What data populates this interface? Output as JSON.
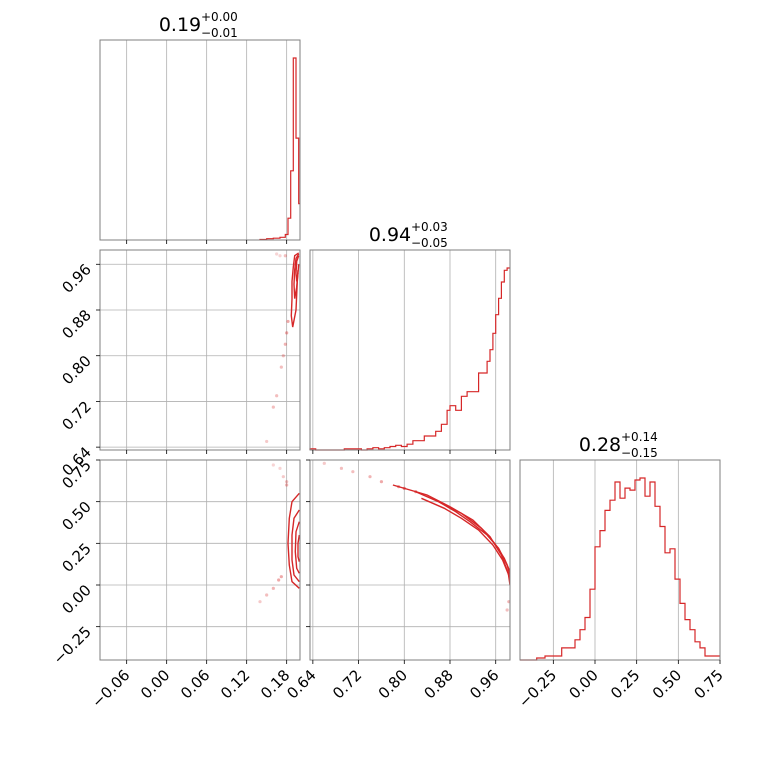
{
  "chart_data": {
    "type": "corner",
    "color": "#d62728",
    "params": [
      {
        "name": "",
        "range": [
          -0.1,
          0.2
        ],
        "ticks": [
          -0.06,
          0.0,
          0.06,
          0.12,
          0.18
        ],
        "tick_labels": [
          "−0.06",
          "0.00",
          "0.06",
          "0.12",
          "0.18"
        ],
        "title": {
          "median": "0.19",
          "plus": "+0.00",
          "minus": "−0.01"
        },
        "hist": {
          "edges": [
            0.14,
            0.15,
            0.16,
            0.17,
            0.178,
            0.182,
            0.186,
            0.19,
            0.194,
            0.198,
            0.2
          ],
          "counts": [
            0.003,
            0.007,
            0.01,
            0.015,
            0.03,
            0.12,
            0.38,
            1.0,
            0.56,
            0.2
          ]
        }
      },
      {
        "name": "",
        "range": [
          0.635,
          0.985
        ],
        "ticks": [
          0.64,
          0.72,
          0.8,
          0.88,
          0.96
        ],
        "tick_labels": [
          "0.64",
          "0.72",
          "0.80",
          "0.88",
          "0.96"
        ],
        "title": {
          "median": "0.94",
          "plus": "+0.03",
          "minus": "−0.05"
        },
        "hist": {
          "edges": [
            0.635,
            0.645,
            0.655,
            0.665,
            0.675,
            0.685,
            0.695,
            0.705,
            0.715,
            0.725,
            0.735,
            0.745,
            0.755,
            0.765,
            0.775,
            0.785,
            0.795,
            0.805,
            0.815,
            0.825,
            0.835,
            0.845,
            0.855,
            0.865,
            0.875,
            0.88,
            0.89,
            0.9,
            0.91,
            0.92,
            0.93,
            0.935,
            0.945,
            0.95,
            0.955,
            0.96,
            0.965,
            0.97,
            0.975,
            0.98,
            0.985
          ],
          "counts": [
            0.005,
            0.0,
            0.0,
            0.0,
            0.0,
            0.0,
            0.005,
            0.005,
            0.005,
            0.0,
            0.005,
            0.01,
            0.005,
            0.01,
            0.015,
            0.02,
            0.015,
            0.025,
            0.04,
            0.04,
            0.06,
            0.06,
            0.08,
            0.11,
            0.17,
            0.19,
            0.17,
            0.23,
            0.25,
            0.25,
            0.33,
            0.33,
            0.38,
            0.43,
            0.5,
            0.58,
            0.65,
            0.72,
            0.77,
            0.78
          ]
        }
      },
      {
        "name": "",
        "range": [
          -0.45,
          0.75
        ],
        "ticks": [
          -0.25,
          0.0,
          0.25,
          0.5,
          0.75
        ],
        "tick_labels": [
          "−0.25",
          "0.00",
          "0.25",
          "0.50",
          "0.75"
        ],
        "title": {
          "median": "0.28",
          "plus": "+0.14",
          "minus": "−0.15"
        },
        "hist": {
          "edges": [
            -0.45,
            -0.4,
            -0.35,
            -0.3,
            -0.25,
            -0.2,
            -0.15,
            -0.12,
            -0.09,
            -0.06,
            -0.03,
            0.0,
            0.03,
            0.06,
            0.09,
            0.12,
            0.15,
            0.18,
            0.21,
            0.24,
            0.27,
            0.3,
            0.33,
            0.36,
            0.39,
            0.42,
            0.45,
            0.48,
            0.51,
            0.54,
            0.57,
            0.6,
            0.63,
            0.66,
            0.69,
            0.72,
            0.75
          ],
          "counts": [
            0.0,
            0.0,
            0.01,
            0.02,
            0.02,
            0.06,
            0.06,
            0.1,
            0.15,
            0.21,
            0.35,
            0.56,
            0.64,
            0.74,
            0.79,
            0.88,
            0.8,
            0.85,
            0.84,
            0.89,
            0.9,
            0.81,
            0.88,
            0.76,
            0.66,
            0.53,
            0.55,
            0.4,
            0.28,
            0.2,
            0.15,
            0.09,
            0.06,
            0.02,
            0.02,
            0.02
          ]
        }
      }
    ],
    "pairs": [
      {
        "x_param": 0,
        "y_param": 1,
        "samples": [
          [
            0.15,
            0.65,
            0.25
          ],
          [
            0.16,
            0.71,
            0.3
          ],
          [
            0.165,
            0.73,
            0.3
          ],
          [
            0.172,
            0.78,
            0.3
          ],
          [
            0.175,
            0.8,
            0.3
          ],
          [
            0.178,
            0.82,
            0.35
          ],
          [
            0.18,
            0.84,
            0.4
          ],
          [
            0.182,
            0.86,
            0.4
          ],
          [
            0.17,
            0.975,
            0.2
          ],
          [
            0.165,
            0.978,
            0.2
          ],
          [
            0.178,
            0.975,
            0.3
          ]
        ],
        "contours": [
          [
            [
              0.198,
              0.98
            ],
            [
              0.192,
              0.975
            ],
            [
              0.19,
              0.955
            ],
            [
              0.188,
              0.93
            ],
            [
              0.188,
              0.9
            ],
            [
              0.187,
              0.87
            ],
            [
              0.189,
              0.85
            ],
            [
              0.194,
              0.88
            ],
            [
              0.196,
              0.93
            ],
            [
              0.198,
              0.96
            ]
          ],
          [
            [
              0.198,
              0.978
            ],
            [
              0.194,
              0.97
            ],
            [
              0.192,
              0.95
            ],
            [
              0.191,
              0.925
            ],
            [
              0.192,
              0.9
            ],
            [
              0.195,
              0.92
            ],
            [
              0.197,
              0.95
            ]
          ],
          [
            [
              0.198,
              0.975
            ],
            [
              0.195,
              0.965
            ],
            [
              0.194,
              0.945
            ],
            [
              0.195,
              0.93
            ],
            [
              0.197,
              0.945
            ]
          ]
        ]
      },
      {
        "x_param": 0,
        "y_param": 2,
        "samples": [
          [
            0.14,
            -0.1,
            0.25
          ],
          [
            0.15,
            -0.06,
            0.3
          ],
          [
            0.16,
            -0.02,
            0.35
          ],
          [
            0.168,
            0.03,
            0.4
          ],
          [
            0.172,
            0.05,
            0.4
          ],
          [
            0.18,
            0.6,
            0.35
          ],
          [
            0.18,
            0.62,
            0.3
          ],
          [
            0.175,
            0.65,
            0.25
          ],
          [
            0.17,
            0.7,
            0.2
          ],
          [
            0.16,
            0.72,
            0.2
          ]
        ],
        "contours": [
          [
            [
              0.199,
              0.55
            ],
            [
              0.188,
              0.5
            ],
            [
              0.184,
              0.4
            ],
            [
              0.182,
              0.25
            ],
            [
              0.184,
              0.12
            ],
            [
              0.188,
              0.02
            ],
            [
              0.199,
              -0.02
            ]
          ],
          [
            [
              0.199,
              0.45
            ],
            [
              0.191,
              0.4
            ],
            [
              0.188,
              0.3
            ],
            [
              0.188,
              0.15
            ],
            [
              0.191,
              0.06
            ],
            [
              0.199,
              0.02
            ]
          ],
          [
            [
              0.199,
              0.38
            ],
            [
              0.194,
              0.32
            ],
            [
              0.193,
              0.2
            ],
            [
              0.195,
              0.1
            ],
            [
              0.199,
              0.07
            ]
          ],
          [
            [
              0.199,
              0.3
            ],
            [
              0.197,
              0.25
            ],
            [
              0.197,
              0.17
            ],
            [
              0.199,
              0.14
            ]
          ]
        ]
      },
      {
        "x_param": 1,
        "y_param": 2,
        "samples": [
          [
            0.66,
            0.73,
            0.25
          ],
          [
            0.69,
            0.7,
            0.3
          ],
          [
            0.71,
            0.68,
            0.3
          ],
          [
            0.74,
            0.65,
            0.35
          ],
          [
            0.76,
            0.62,
            0.4
          ],
          [
            0.79,
            0.59,
            0.45
          ],
          [
            0.8,
            0.58,
            0.5
          ],
          [
            0.82,
            0.56,
            0.5
          ],
          [
            0.98,
            -0.15,
            0.3
          ],
          [
            0.983,
            -0.1,
            0.35
          ]
        ],
        "contours": [
          [
            [
              0.78,
              0.6
            ],
            [
              0.84,
              0.54
            ],
            [
              0.88,
              0.47
            ],
            [
              0.92,
              0.39
            ],
            [
              0.95,
              0.29
            ],
            [
              0.97,
              0.18
            ],
            [
              0.982,
              0.07
            ],
            [
              0.985,
              0.0
            ]
          ],
          [
            [
              0.83,
              0.52
            ],
            [
              0.87,
              0.46
            ],
            [
              0.9,
              0.4
            ],
            [
              0.93,
              0.33
            ],
            [
              0.955,
              0.24
            ],
            [
              0.972,
              0.15
            ],
            [
              0.984,
              0.05
            ]
          ],
          [
            [
              0.86,
              0.5
            ],
            [
              0.89,
              0.44
            ],
            [
              0.915,
              0.38
            ],
            [
              0.945,
              0.3
            ],
            [
              0.965,
              0.22
            ],
            [
              0.98,
              0.12
            ],
            [
              0.985,
              0.06
            ]
          ],
          [
            [
              0.82,
              0.56
            ],
            [
              0.86,
              0.5
            ],
            [
              0.9,
              0.43
            ],
            [
              0.935,
              0.34
            ],
            [
              0.958,
              0.25
            ],
            [
              0.975,
              0.16
            ],
            [
              0.985,
              0.08
            ]
          ]
        ]
      }
    ]
  }
}
